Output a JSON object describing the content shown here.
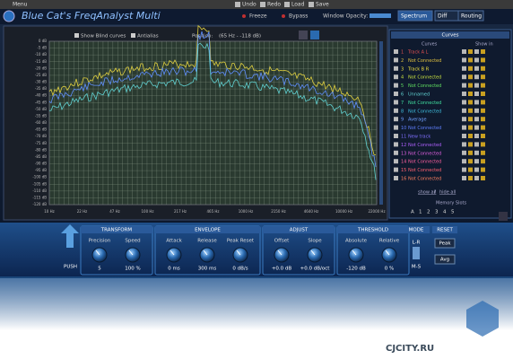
{
  "menu_bar": {
    "items": [
      "Menu",
      "Undo",
      "Redo",
      "Load",
      "Save"
    ]
  },
  "header": {
    "title": "Blue Cat's FreqAnalyst Multi",
    "buttons": [
      "Freeze",
      "Bypass"
    ],
    "opacity_label": "Window Opacity:",
    "tabs": [
      "Spectrum",
      "Diff",
      "Routing"
    ]
  },
  "graph": {
    "options": [
      "Show Blind curves",
      "Antialias"
    ],
    "position_label": "Position:",
    "position_value": "(65 Hz - -118 dB)",
    "y_labels": [
      "0 dB",
      "-5 dB",
      "-10 dB",
      "-15 dB",
      "-20 dB",
      "-25 dB",
      "-30 dB",
      "-35 dB",
      "-40 dB",
      "-45 dB",
      "-50 dB",
      "-55 dB",
      "-60 dB",
      "-65 dB",
      "-70 dB",
      "-75 dB",
      "-80 dB",
      "-85 dB",
      "-90 dB",
      "-95 dB",
      "-100 dB",
      "-105 dB",
      "-110 dB",
      "-115 dB",
      "-120 dB"
    ],
    "x_labels": [
      "10 Hz",
      "22 Hz",
      "47 Hz",
      "100 Hz",
      "217 Hz",
      "465 Hz",
      "1000 Hz",
      "2150 Hz",
      "4640 Hz",
      "10000 Hz",
      "22000 Hz"
    ]
  },
  "curves_panel": {
    "title": "Curves",
    "columns": [
      "Curves",
      "Show in"
    ],
    "rows": [
      {
        "number": "1",
        "name": "Track A L",
        "color": "#e05050"
      },
      {
        "number": "2",
        "name": "Not Connected",
        "color": "#e0c040"
      },
      {
        "number": "3",
        "name": "Track B R",
        "color": "#f0e040"
      },
      {
        "number": "4",
        "name": "Not Connected",
        "color": "#c8e040"
      },
      {
        "number": "5",
        "name": "Not Connected",
        "color": "#60e060"
      },
      {
        "number": "6",
        "name": "Unnamed",
        "color": "#60d0d0"
      },
      {
        "number": "7",
        "name": "Not Connected",
        "color": "#40e0a0"
      },
      {
        "number": "8",
        "name": "Not Connected",
        "color": "#40c0e0"
      },
      {
        "number": "9",
        "name": "Average",
        "color": "#70a0ff"
      },
      {
        "number": "10",
        "name": "Not Connected",
        "color": "#6080ff"
      },
      {
        "number": "11",
        "name": "New track",
        "color": "#8070ff"
      },
      {
        "number": "12",
        "name": "Not Connected",
        "color": "#b060ff"
      },
      {
        "number": "13",
        "name": "Not Connected",
        "color": "#e060e0"
      },
      {
        "number": "14",
        "name": "Not Connected",
        "color": "#ff60a0"
      },
      {
        "number": "15",
        "name": "Not Connected",
        "color": "#ff6070"
      },
      {
        "number": "16",
        "name": "Not Connected",
        "color": "#ff8060"
      }
    ],
    "show_all": "show all",
    "separator": "/",
    "hide_all": "hide all",
    "memory_title": "Memory Slots",
    "memory_slots": [
      "A",
      "1",
      "2",
      "3",
      "4",
      "5"
    ]
  },
  "controls": {
    "push": "PUSH",
    "sections": [
      {
        "title": "TRANSFORM",
        "knobs": [
          {
            "label": "Precision",
            "value": "5"
          },
          {
            "label": "Speed",
            "value": "100 %"
          }
        ]
      },
      {
        "title": "ENVELOPE",
        "knobs": [
          {
            "label": "Attack",
            "value": "0 ms"
          },
          {
            "label": "Release",
            "value": "300 ms"
          },
          {
            "label": "Peak Reset",
            "value": "0 dB/s"
          }
        ]
      },
      {
        "title": "ADJUST",
        "knobs": [
          {
            "label": "Offset",
            "value": "+0.0 dB"
          },
          {
            "label": "Slope",
            "value": "+0.0 dB/oct"
          }
        ]
      },
      {
        "title": "THRESHOLD",
        "knobs": [
          {
            "label": "Absolute",
            "value": "-120 dB"
          },
          {
            "label": "Relative",
            "value": "0 %"
          }
        ]
      }
    ],
    "mode": {
      "title": "MODE",
      "options": [
        "L-R",
        "M-S"
      ]
    },
    "reset": {
      "title": "RESET",
      "buttons": [
        "Peak",
        "Avg"
      ]
    }
  },
  "watermark": "CJCITY.RU"
}
